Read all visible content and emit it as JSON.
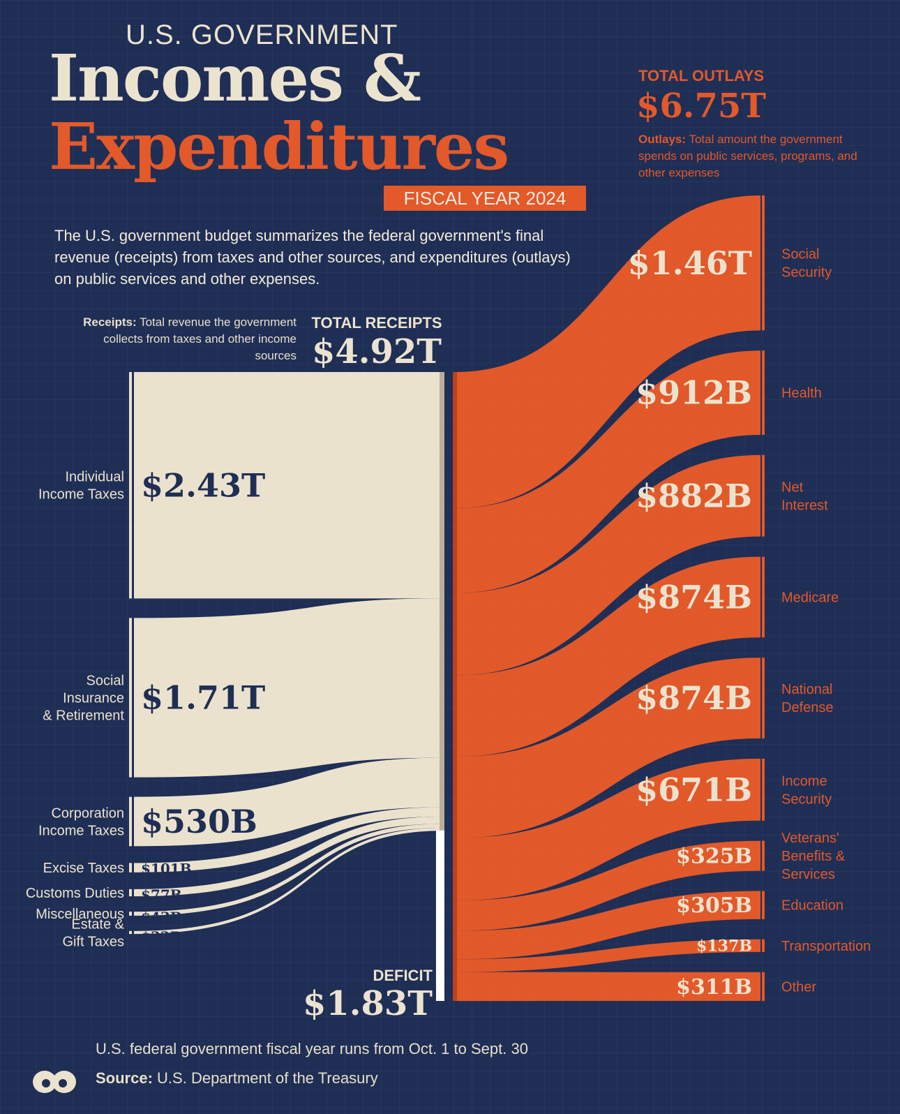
{
  "header": {
    "kicker": "U.S. GOVERNMENT",
    "title_line1": "Incomes &",
    "title_line2": "Expenditures",
    "badge": "FISCAL YEAR 2024",
    "description": "The U.S. government budget summarizes the federal government's final revenue (receipts) from taxes and other sources, and expenditures (outlays) on public services and other expenses."
  },
  "outlays_total": {
    "label": "TOTAL OUTLAYS",
    "value": "$6.75T",
    "definition_term": "Outlays:",
    "definition": "Total amount the government spends on public services, programs, and other expenses"
  },
  "receipts_total": {
    "label": "TOTAL RECEIPTS",
    "value": "$4.92T",
    "definition_term": "Receipts:",
    "definition": "Total revenue the government collects from taxes and other income sources"
  },
  "deficit": {
    "label": "DEFICIT",
    "value": "$1.83T"
  },
  "footer": {
    "note": "U.S. federal government fiscal year runs from Oct. 1 to Sept. 30",
    "source_term": "Source:",
    "source": "U.S. Department of the Treasury"
  },
  "colors": {
    "background": "#1f2e55",
    "receipts": "#ece3cf",
    "outlays": "#e3592a"
  },
  "chart_data": {
    "type": "sankey",
    "unit": "billions USD",
    "receipts": [
      {
        "name": "Individual Income Taxes",
        "value": 2430,
        "label": "$2.43T"
      },
      {
        "name": "Social Insurance & Retirement",
        "value": 1710,
        "label": "$1.71T"
      },
      {
        "name": "Corporation Income Taxes",
        "value": 530,
        "label": "$530B"
      },
      {
        "name": "Excise Taxes",
        "value": 101,
        "label": "$101B"
      },
      {
        "name": "Customs Duties",
        "value": 77,
        "label": "$77B"
      },
      {
        "name": "Miscellaneous",
        "value": 43,
        "label": "$43B"
      },
      {
        "name": "Estate & Gift Taxes",
        "value": 32,
        "label": "$32B"
      }
    ],
    "outlays": [
      {
        "name": "Social Security",
        "value": 1460,
        "label": "$1.46T"
      },
      {
        "name": "Health",
        "value": 912,
        "label": "$912B"
      },
      {
        "name": "Net Interest",
        "value": 882,
        "label": "$882B"
      },
      {
        "name": "Medicare",
        "value": 874,
        "label": "$874B"
      },
      {
        "name": "National Defense",
        "value": 874,
        "label": "$874B"
      },
      {
        "name": "Income Security",
        "value": 671,
        "label": "$671B"
      },
      {
        "name": "Veterans' Benefits & Services",
        "value": 325,
        "label": "$325B"
      },
      {
        "name": "Education",
        "value": 305,
        "label": "$305B"
      },
      {
        "name": "Transportation",
        "value": 137,
        "label": "$137B"
      },
      {
        "name": "Other",
        "value": 311,
        "label": "$311B"
      }
    ],
    "total_receipts": 4920,
    "total_outlays": 6750,
    "deficit": 1830
  }
}
